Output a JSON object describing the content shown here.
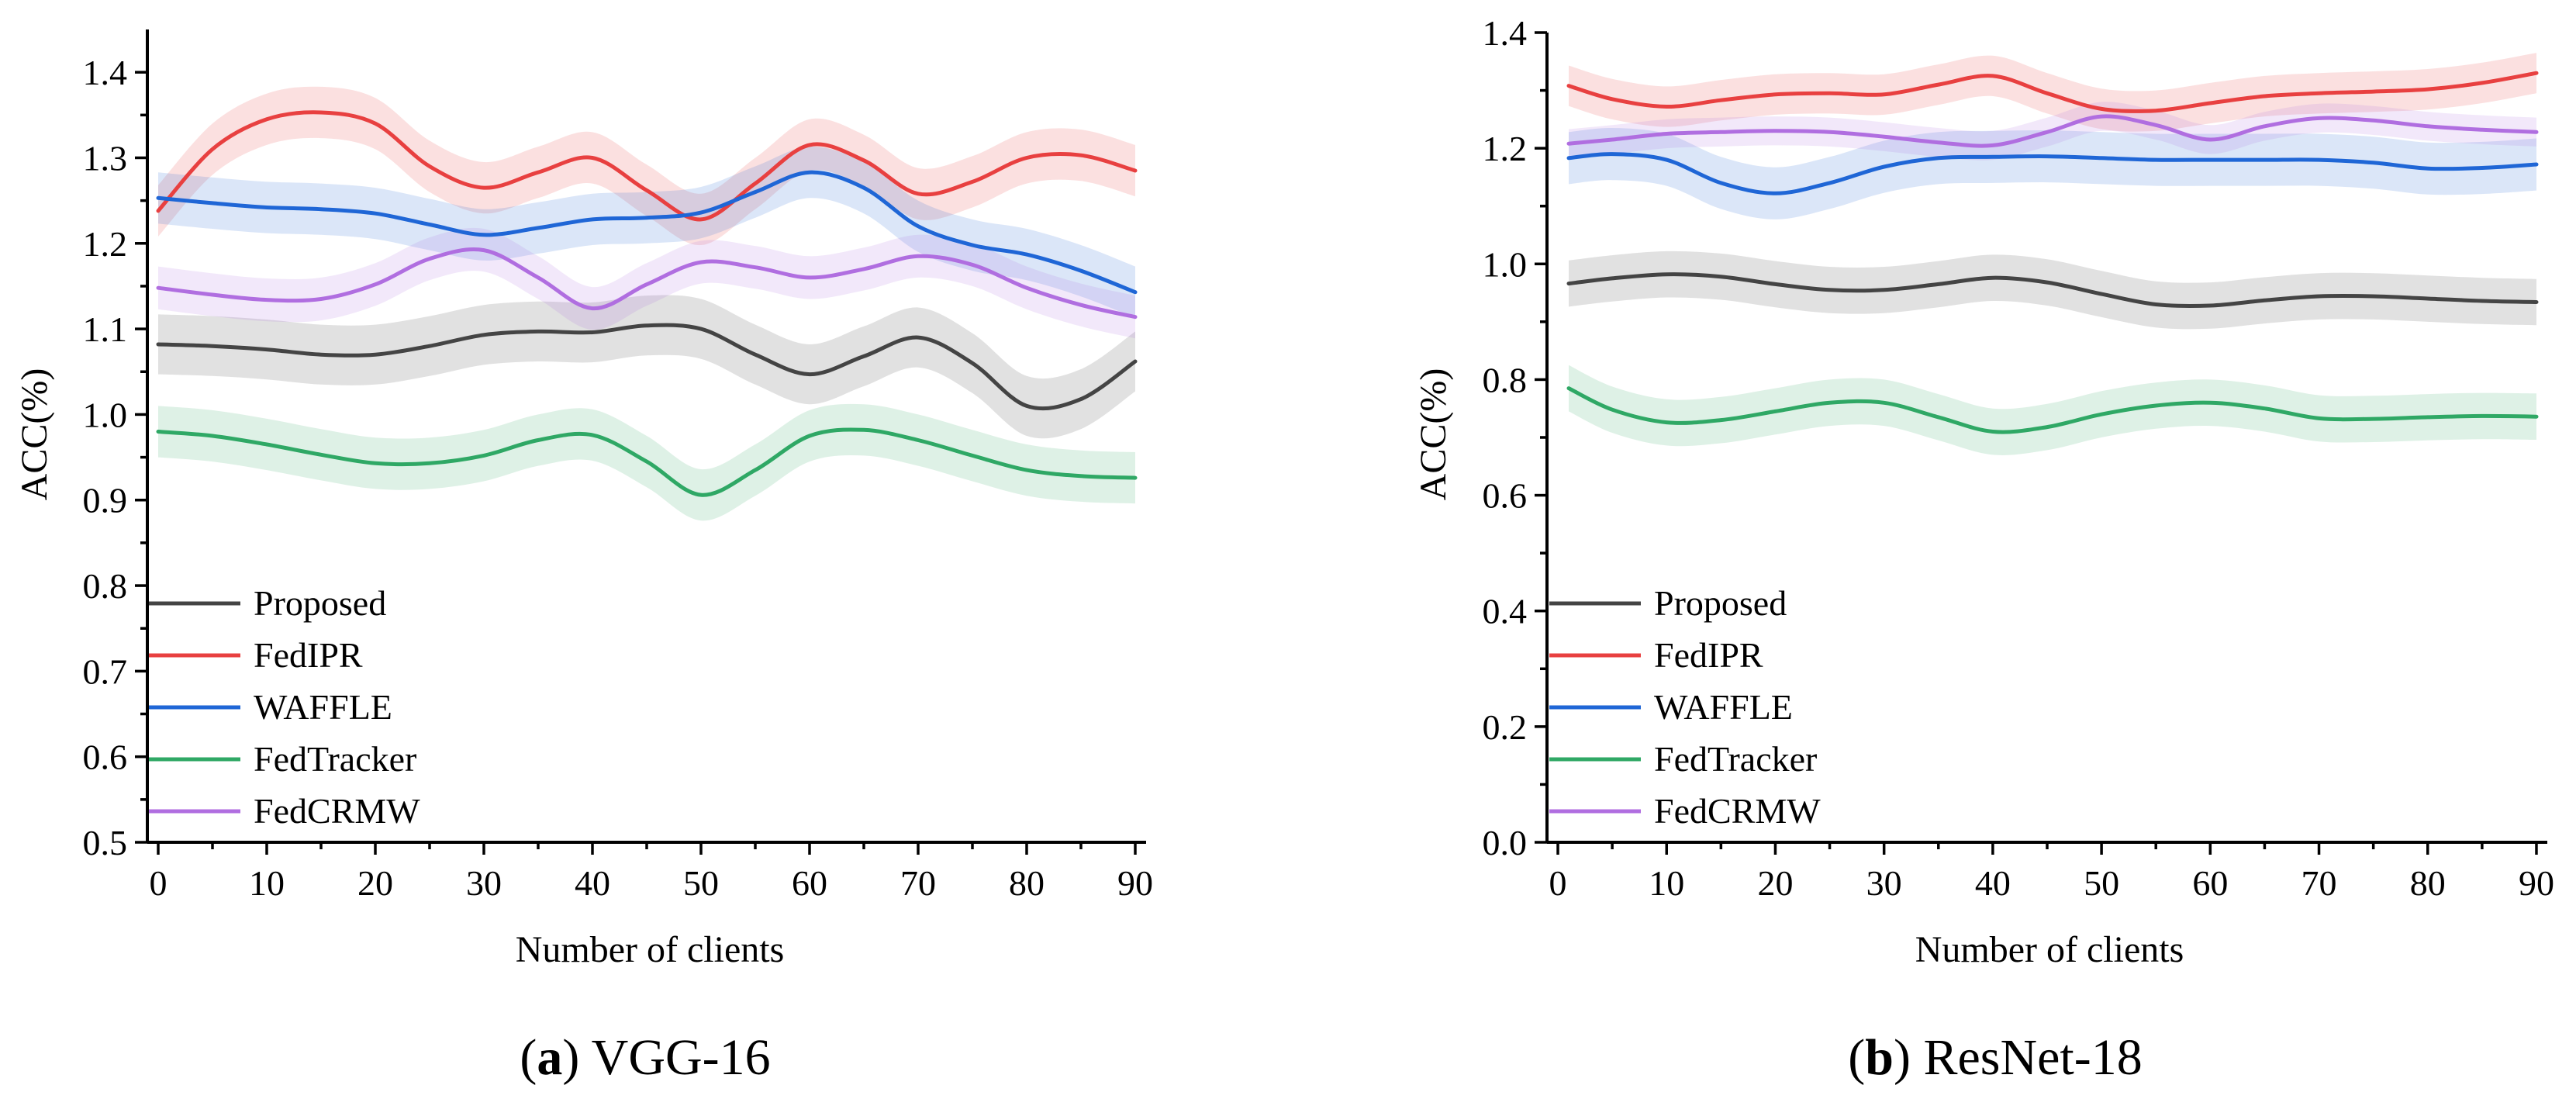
{
  "figure": {
    "legend_entries": [
      "Proposed",
      "FedIPR",
      "WAFFLE",
      "FedTracker",
      "FedCRMW"
    ]
  },
  "chart_data": [
    {
      "type": "line",
      "panel_id": "a",
      "caption_letter": "a",
      "caption_text": "VGG-16",
      "title": "",
      "xlabel": "Number of clients",
      "ylabel": "ACC(%)",
      "xlim": [
        -1,
        91
      ],
      "ylim": [
        0.5,
        1.45
      ],
      "xticks": [
        0,
        10,
        20,
        30,
        40,
        50,
        60,
        70,
        80,
        90
      ],
      "xtick_labels": [
        "0",
        "10",
        "20",
        "30",
        "40",
        "50",
        "60",
        "70",
        "80",
        "90"
      ],
      "yticks": [
        0.5,
        0.6,
        0.7,
        0.8,
        0.9,
        1.0,
        1.1,
        1.2,
        1.3,
        1.4
      ],
      "ytick_labels": [
        "0.5",
        "0.6",
        "0.7",
        "0.8",
        "0.9",
        "1.0",
        "1.1",
        "1.2",
        "1.3",
        "1.4"
      ],
      "legend_position": "lower-left",
      "series": [
        {
          "name": "Proposed",
          "color": "#444444",
          "band": 0.035,
          "x": [
            0,
            5,
            10,
            15,
            20,
            25,
            30,
            35,
            40,
            45,
            50,
            55,
            60,
            65,
            70,
            75,
            80,
            85,
            90
          ],
          "values": [
            1.082,
            1.08,
            1.076,
            1.07,
            1.07,
            1.08,
            1.093,
            1.097,
            1.096,
            1.104,
            1.1,
            1.07,
            1.047,
            1.068,
            1.09,
            1.06,
            1.01,
            1.018,
            1.062
          ]
        },
        {
          "name": "FedIPR",
          "color": "#e84040",
          "band": 0.03,
          "x": [
            0,
            5,
            10,
            15,
            20,
            25,
            30,
            35,
            40,
            45,
            50,
            55,
            60,
            65,
            70,
            75,
            80,
            85,
            90
          ],
          "values": [
            1.238,
            1.31,
            1.345,
            1.353,
            1.34,
            1.29,
            1.265,
            1.283,
            1.3,
            1.262,
            1.228,
            1.27,
            1.315,
            1.297,
            1.258,
            1.272,
            1.3,
            1.303,
            1.285
          ]
        },
        {
          "name": "WAFFLE",
          "color": "#1f66d6",
          "band": 0.03,
          "x": [
            0,
            5,
            10,
            15,
            20,
            25,
            30,
            35,
            40,
            45,
            50,
            55,
            60,
            65,
            70,
            75,
            80,
            85,
            90
          ],
          "values": [
            1.253,
            1.247,
            1.242,
            1.24,
            1.235,
            1.222,
            1.21,
            1.218,
            1.228,
            1.23,
            1.236,
            1.26,
            1.283,
            1.265,
            1.22,
            1.198,
            1.187,
            1.168,
            1.143
          ]
        },
        {
          "name": "FedTracker",
          "color": "#2fa865",
          "band": 0.03,
          "x": [
            0,
            5,
            10,
            15,
            20,
            25,
            30,
            35,
            40,
            45,
            50,
            55,
            60,
            65,
            70,
            75,
            80,
            85,
            90
          ],
          "values": [
            0.98,
            0.975,
            0.965,
            0.953,
            0.943,
            0.943,
            0.952,
            0.97,
            0.976,
            0.945,
            0.906,
            0.935,
            0.975,
            0.982,
            0.97,
            0.952,
            0.935,
            0.928,
            0.926
          ]
        },
        {
          "name": "FedCRMW",
          "color": "#b06ee0",
          "band": 0.025,
          "x": [
            0,
            5,
            10,
            15,
            20,
            25,
            30,
            35,
            40,
            45,
            50,
            55,
            60,
            65,
            70,
            75,
            80,
            85,
            90
          ],
          "values": [
            1.148,
            1.14,
            1.134,
            1.135,
            1.152,
            1.182,
            1.192,
            1.16,
            1.124,
            1.152,
            1.178,
            1.172,
            1.16,
            1.17,
            1.185,
            1.175,
            1.148,
            1.128,
            1.114
          ]
        }
      ]
    },
    {
      "type": "line",
      "panel_id": "b",
      "caption_letter": "b",
      "caption_text": "ResNet-18",
      "title": "",
      "xlabel": "Number of clients",
      "ylabel": "ACC(%)",
      "xlim": [
        -1,
        91
      ],
      "ylim": [
        0.0,
        1.4
      ],
      "xticks": [
        0,
        10,
        20,
        30,
        40,
        50,
        60,
        70,
        80,
        90
      ],
      "xtick_labels": [
        "0",
        "10",
        "20",
        "30",
        "40",
        "50",
        "60",
        "70",
        "80",
        "90"
      ],
      "yticks": [
        0.0,
        0.2,
        0.4,
        0.6,
        0.8,
        1.0,
        1.2,
        1.4
      ],
      "ytick_labels": [
        "0.0",
        "0.2",
        "0.4",
        "0.6",
        "0.8",
        "1.0",
        "1.2",
        "1.4"
      ],
      "legend_position": "lower-left",
      "series": [
        {
          "name": "Proposed",
          "color": "#444444",
          "band": 0.04,
          "x": [
            1,
            5,
            10,
            15,
            20,
            25,
            30,
            35,
            40,
            45,
            50,
            55,
            60,
            65,
            70,
            75,
            80,
            85,
            90
          ],
          "values": [
            0.966,
            0.975,
            0.982,
            0.978,
            0.965,
            0.955,
            0.955,
            0.965,
            0.976,
            0.968,
            0.948,
            0.93,
            0.928,
            0.937,
            0.944,
            0.944,
            0.94,
            0.936,
            0.934
          ]
        },
        {
          "name": "FedIPR",
          "color": "#e84040",
          "band": 0.035,
          "x": [
            1,
            5,
            10,
            15,
            20,
            25,
            30,
            35,
            40,
            45,
            50,
            55,
            60,
            65,
            70,
            75,
            80,
            85,
            90
          ],
          "values": [
            1.308,
            1.285,
            1.272,
            1.283,
            1.293,
            1.295,
            1.293,
            1.31,
            1.325,
            1.295,
            1.268,
            1.265,
            1.278,
            1.29,
            1.295,
            1.298,
            1.302,
            1.313,
            1.33
          ]
        },
        {
          "name": "WAFFLE",
          "color": "#1f66d6",
          "band": 0.045,
          "x": [
            1,
            5,
            10,
            15,
            20,
            25,
            30,
            35,
            40,
            45,
            50,
            55,
            60,
            65,
            70,
            75,
            80,
            85,
            90
          ],
          "values": [
            1.183,
            1.19,
            1.18,
            1.14,
            1.122,
            1.14,
            1.168,
            1.183,
            1.185,
            1.186,
            1.183,
            1.18,
            1.18,
            1.18,
            1.18,
            1.175,
            1.165,
            1.166,
            1.172
          ]
        },
        {
          "name": "FedTracker",
          "color": "#2fa865",
          "band": 0.04,
          "x": [
            1,
            5,
            10,
            15,
            20,
            25,
            30,
            35,
            40,
            45,
            50,
            55,
            60,
            65,
            70,
            75,
            80,
            85,
            90
          ],
          "values": [
            0.785,
            0.748,
            0.726,
            0.73,
            0.745,
            0.76,
            0.76,
            0.735,
            0.71,
            0.718,
            0.74,
            0.755,
            0.76,
            0.75,
            0.733,
            0.732,
            0.735,
            0.737,
            0.736
          ]
        },
        {
          "name": "FedCRMW",
          "color": "#b06ee0",
          "band": 0.025,
          "x": [
            1,
            5,
            10,
            15,
            20,
            25,
            30,
            35,
            40,
            45,
            50,
            55,
            60,
            65,
            70,
            75,
            80,
            85,
            90
          ],
          "values": [
            1.208,
            1.215,
            1.225,
            1.228,
            1.23,
            1.228,
            1.22,
            1.21,
            1.205,
            1.228,
            1.255,
            1.24,
            1.215,
            1.238,
            1.252,
            1.248,
            1.238,
            1.232,
            1.228
          ]
        }
      ]
    }
  ]
}
